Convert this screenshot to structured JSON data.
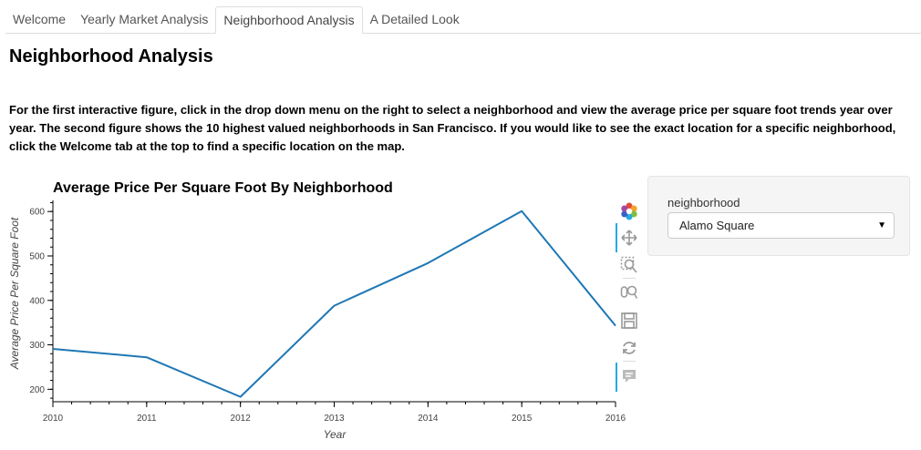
{
  "tabs": [
    {
      "label": "Welcome"
    },
    {
      "label": "Yearly Market Analysis"
    },
    {
      "label": "Neighborhood Analysis"
    },
    {
      "label": "A Detailed Look"
    }
  ],
  "page": {
    "title": "Neighborhood Analysis",
    "intro": "For the first interactive figure, click in the drop down menu on the right to select a neighborhood and view the average price per square foot trends year over year. The second figure shows the 10 highest valued neighborhoods in San Francisco. If you would like to see the exact location for a specific neighborhood, click the Welcome tab at the top to find a specific location on the map."
  },
  "widget": {
    "label": "neighborhood",
    "selected": "Alamo Square"
  },
  "toolbar": {
    "tools": [
      "bokeh-logo-icon",
      "pan-icon",
      "box-zoom-icon",
      "wheel-zoom-icon",
      "save-icon",
      "reset-icon",
      "hover-icon"
    ]
  },
  "chart_data": {
    "type": "line",
    "title": "Average Price Per Square Foot By Neighborhood",
    "xlabel": "Year",
    "ylabel": "Average Price Per Square Foot",
    "x": [
      2010,
      2011,
      2012,
      2013,
      2014,
      2015,
      2016
    ],
    "series": [
      {
        "values": [
          291,
          272,
          183,
          388,
          484,
          601,
          343
        ],
        "color": "#1f77b4"
      }
    ],
    "xlim": [
      2010,
      2016
    ],
    "ylim": [
      172,
      625
    ],
    "x_ticks": [
      2010,
      2011,
      2012,
      2013,
      2014,
      2015,
      2016
    ],
    "y_ticks": [
      200,
      300,
      400,
      500,
      600
    ],
    "grid": false
  }
}
